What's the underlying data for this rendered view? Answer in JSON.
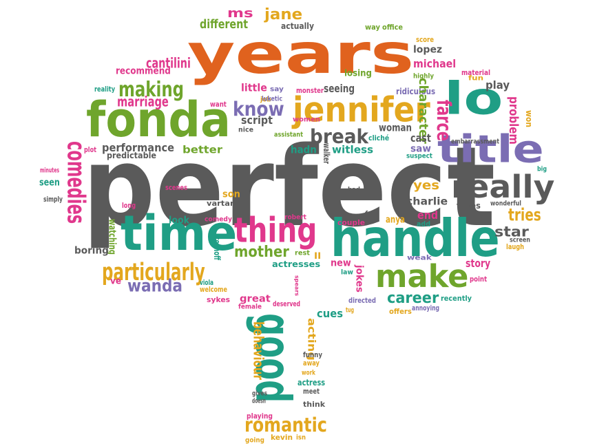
{
  "palette": {
    "gray": "#5a5a5a",
    "orange": "#e0621e",
    "green": "#6fa52c",
    "teal": "#1f9e85",
    "purple": "#7b6db3",
    "pink": "#e0388c",
    "gold": "#e3a71e"
  },
  "words": [
    {
      "text": "perfect",
      "color": "gray"
    },
    {
      "text": "years",
      "color": "orange"
    },
    {
      "text": "fonda",
      "color": "green"
    },
    {
      "text": "handle",
      "color": "teal"
    },
    {
      "text": "time",
      "color": "teal"
    },
    {
      "text": "title",
      "color": "purple"
    },
    {
      "text": "jennifer",
      "color": "gold"
    },
    {
      "text": "lo",
      "color": "teal"
    },
    {
      "text": "really",
      "color": "gray"
    },
    {
      "text": "make",
      "color": "green"
    },
    {
      "text": "thing",
      "color": "pink"
    },
    {
      "text": "good",
      "color": "teal"
    },
    {
      "text": "particularly",
      "color": "gold"
    },
    {
      "text": "making",
      "color": "green"
    },
    {
      "text": "know",
      "color": "purple"
    },
    {
      "text": "romantic",
      "color": "gold"
    },
    {
      "text": "break",
      "color": "gray"
    },
    {
      "text": "wanda",
      "color": "purple"
    },
    {
      "text": "mother",
      "color": "green"
    },
    {
      "text": "comedies",
      "color": "pink"
    },
    {
      "text": "farce",
      "color": "pink"
    },
    {
      "text": "tries",
      "color": "gold"
    },
    {
      "text": "career",
      "color": "teal"
    },
    {
      "text": "marriage",
      "color": "pink"
    },
    {
      "text": "cantilini",
      "color": "pink"
    },
    {
      "text": "ms",
      "color": "pink"
    },
    {
      "text": "jane",
      "color": "gold"
    },
    {
      "text": "different",
      "color": "green"
    },
    {
      "text": "actually",
      "color": "gray"
    },
    {
      "text": "way",
      "color": "green"
    },
    {
      "text": "office",
      "color": "green"
    },
    {
      "text": "score",
      "color": "gold"
    },
    {
      "text": "lopez",
      "color": "gray"
    },
    {
      "text": "michael",
      "color": "pink"
    },
    {
      "text": "highly",
      "color": "green"
    },
    {
      "text": "material",
      "color": "pink"
    },
    {
      "text": "fun",
      "color": "gold"
    },
    {
      "text": "play",
      "color": "gray"
    },
    {
      "text": "recommend",
      "color": "pink"
    },
    {
      "text": "losing",
      "color": "green"
    },
    {
      "text": "reality",
      "color": "teal"
    },
    {
      "text": "little",
      "color": "pink"
    },
    {
      "text": "say",
      "color": "purple"
    },
    {
      "text": "seeing",
      "color": "gray"
    },
    {
      "text": "ridiculous",
      "color": "purple"
    },
    {
      "text": "character",
      "color": "green"
    },
    {
      "text": "problem",
      "color": "pink"
    },
    {
      "text": "won",
      "color": "gold"
    },
    {
      "text": "want",
      "color": "pink"
    },
    {
      "text": "job",
      "color": "gold"
    },
    {
      "text": "monster",
      "color": "pink"
    },
    {
      "text": "luketic",
      "color": "purple"
    },
    {
      "text": "women",
      "color": "pink"
    },
    {
      "text": "script",
      "color": "gray"
    },
    {
      "text": "nice",
      "color": "gray"
    },
    {
      "text": "woman",
      "color": "gray"
    },
    {
      "text": "embarrassment",
      "color": "gray"
    },
    {
      "text": "plot",
      "color": "pink"
    },
    {
      "text": "performance",
      "color": "gray"
    },
    {
      "text": "predictable",
      "color": "gray"
    },
    {
      "text": "better",
      "color": "green"
    },
    {
      "text": "assistant",
      "color": "green"
    },
    {
      "text": "hadn",
      "color": "teal"
    },
    {
      "text": "witless",
      "color": "teal"
    },
    {
      "text": "cliché",
      "color": "teal"
    },
    {
      "text": "walker",
      "color": "gray"
    },
    {
      "text": "cast",
      "color": "gray"
    },
    {
      "text": "saw",
      "color": "purple"
    },
    {
      "text": "suspect",
      "color": "teal"
    },
    {
      "text": "minutes",
      "color": "pink"
    },
    {
      "text": "seen",
      "color": "teal"
    },
    {
      "text": "scenes",
      "color": "pink"
    },
    {
      "text": "son",
      "color": "gold"
    },
    {
      "text": "vartan",
      "color": "gray"
    },
    {
      "text": "bad",
      "color": "gray"
    },
    {
      "text": "yes",
      "color": "gold"
    },
    {
      "text": "charlie",
      "color": "gray"
    },
    {
      "text": "takes",
      "color": "gray"
    },
    {
      "text": "wonderful",
      "color": "gray"
    },
    {
      "text": "big",
      "color": "teal"
    },
    {
      "text": "simply",
      "color": "gray"
    },
    {
      "text": "long",
      "color": "pink"
    },
    {
      "text": "look",
      "color": "teal"
    },
    {
      "text": "comedy",
      "color": "pink"
    },
    {
      "text": "robert",
      "color": "pink"
    },
    {
      "text": "feel",
      "color": "gray"
    },
    {
      "text": "couple",
      "color": "pink"
    },
    {
      "text": "anya",
      "color": "gold"
    },
    {
      "text": "end",
      "color": "pink"
    },
    {
      "text": "add",
      "color": "teal"
    },
    {
      "text": "bit",
      "color": "gray"
    },
    {
      "text": "star",
      "color": "gray"
    },
    {
      "text": "screen",
      "color": "gray"
    },
    {
      "text": "laugh",
      "color": "gold"
    },
    {
      "text": "watching",
      "color": "green"
    },
    {
      "text": "boring",
      "color": "gray"
    },
    {
      "text": "kochoff",
      "color": "teal"
    },
    {
      "text": "rest",
      "color": "green"
    },
    {
      "text": "ll",
      "color": "gold"
    },
    {
      "text": "actresses",
      "color": "teal"
    },
    {
      "text": "new",
      "color": "pink"
    },
    {
      "text": "law",
      "color": "teal"
    },
    {
      "text": "jokes",
      "color": "pink"
    },
    {
      "text": "weak",
      "color": "purple"
    },
    {
      "text": "story",
      "color": "pink"
    },
    {
      "text": "point",
      "color": "pink"
    },
    {
      "text": "ve",
      "color": "pink"
    },
    {
      "text": "viola",
      "color": "teal"
    },
    {
      "text": "welcome",
      "color": "gold"
    },
    {
      "text": "sykes",
      "color": "pink"
    },
    {
      "text": "spears",
      "color": "pink"
    },
    {
      "text": "great",
      "color": "pink"
    },
    {
      "text": "deserved",
      "color": "pink"
    },
    {
      "text": "female",
      "color": "pink"
    },
    {
      "text": "directed",
      "color": "purple"
    },
    {
      "text": "tug",
      "color": "gold"
    },
    {
      "text": "offers",
      "color": "gold"
    },
    {
      "text": "annoying",
      "color": "purple"
    },
    {
      "text": "recently",
      "color": "teal"
    },
    {
      "text": "cues",
      "color": "teal"
    },
    {
      "text": "behaviour",
      "color": "gold"
    },
    {
      "text": "acting",
      "color": "gold"
    },
    {
      "text": "funny",
      "color": "gray"
    },
    {
      "text": "away",
      "color": "gold"
    },
    {
      "text": "work",
      "color": "gold"
    },
    {
      "text": "actress",
      "color": "teal"
    },
    {
      "text": "meet",
      "color": "gray"
    },
    {
      "text": "gives",
      "color": "gray"
    },
    {
      "text": "doesn",
      "color": "gray"
    },
    {
      "text": "think",
      "color": "gray"
    },
    {
      "text": "playing",
      "color": "pink"
    },
    {
      "text": "going",
      "color": "gold"
    },
    {
      "text": "kevin",
      "color": "gold"
    },
    {
      "text": "isn",
      "color": "gold"
    },
    {
      "text": "fast",
      "color": "purple"
    }
  ]
}
